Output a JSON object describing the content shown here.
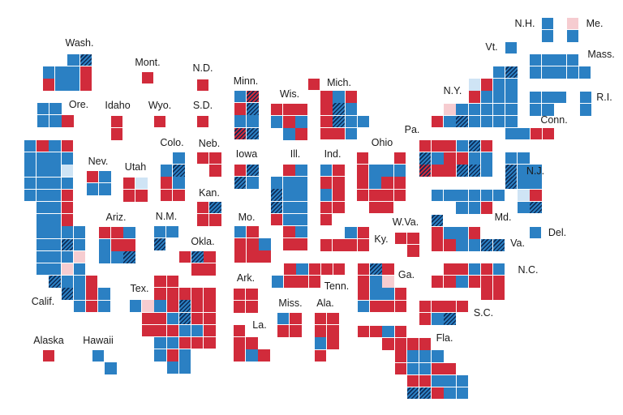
{
  "colors": {
    "D": "#2b80c3",
    "R": "#d12b3b",
    "d": "#cfe4f5",
    "r": "#f6ccd0",
    "h": "#2b80c3",
    "H": "#d12b3b",
    "hatch": "#0d2a55"
  },
  "legend_codes": {
    "D": "democratic",
    "R": "republican",
    "d": "democratic-lean",
    "r": "republican-lean",
    "h": "democratic-hatched",
    "H": "republican-hatched"
  },
  "states": [
    {
      "key": "wa",
      "label": "Wash.",
      "rows": [
        "..Dh",
        "DDDR",
        "RDDR"
      ]
    },
    {
      "key": "mt",
      "label": "Mont.",
      "rows": [
        "R"
      ]
    },
    {
      "key": "nd",
      "label": "N.D.",
      "rows": [
        "R"
      ]
    },
    {
      "key": "or",
      "label": "Ore.",
      "rows": [
        "DD.",
        "DDR"
      ]
    },
    {
      "key": "id",
      "label": "Idaho",
      "rows": [
        "R",
        "R"
      ]
    },
    {
      "key": "wy",
      "label": "Wyo.",
      "rows": [
        "R"
      ]
    },
    {
      "key": "sd",
      "label": "S.D.",
      "rows": [
        "R"
      ]
    },
    {
      "key": "ca",
      "label": "Calif.",
      "rows": [
        "DRDR",
        "DDDD",
        "DDDd",
        "DDDD",
        "DDDR",
        ".DDR",
        ".DDR",
        ".DDDD",
        ".DDhD",
        ".DDDr",
        ".DDrD",
        "..hDDR",
        "...hDRD",
        "....DRD"
      ]
    },
    {
      "key": "nv",
      "label": "Nev.",
      "rows": [
        "RD",
        "DD"
      ]
    },
    {
      "key": "ut",
      "label": "Utah",
      "rows": [
        "Rd",
        "RR"
      ]
    },
    {
      "key": "co",
      "label": "Colo.",
      "rows": [
        ".D",
        "Dh",
        "RD",
        "RR"
      ]
    },
    {
      "key": "ne",
      "label": "Neb.",
      "rows": [
        "RR",
        ".R"
      ]
    },
    {
      "key": "ks",
      "label": "Kan.",
      "rows": [
        "Rh",
        "RR"
      ]
    },
    {
      "key": "nm",
      "label": "N.M.",
      "rows": [
        "DD",
        "h."
      ]
    },
    {
      "key": "ok",
      "label": "Okla.",
      "rows": [
        "RhR",
        ".RR"
      ]
    },
    {
      "key": "az",
      "label": "Ariz.",
      "rows": [
        "RRD",
        "DRR",
        "DDh"
      ]
    },
    {
      "key": "ak",
      "label": "Alaska",
      "rows": [
        "R"
      ]
    },
    {
      "key": "hi",
      "label": "Hawaii",
      "rows": [
        "D.",
        ".D"
      ]
    },
    {
      "key": "tx",
      "label": "Tex.",
      "rows": [
        "..RR",
        "..RRRRR",
        "DrDRhRR",
        ".RRDhRR",
        ".RRRDDR",
        "..DDRRR",
        "..DRD",
        "...DD"
      ]
    },
    {
      "key": "mn",
      "label": "Minn.",
      "rows": [
        "DH",
        "Rh",
        "DD",
        "Hh"
      ]
    },
    {
      "key": "wi",
      "label": "Wis.",
      "rows": [
        "RRR",
        "DRD",
        ".DR"
      ]
    },
    {
      "key": "mi",
      "label": "Mich.",
      "rows": [
        "R",
        ".RDR",
        ".RhD",
        ".RhDD",
        ".RRD"
      ]
    },
    {
      "key": "ia",
      "label": "Iowa",
      "rows": [
        "Rh",
        "hD"
      ]
    },
    {
      "key": "il",
      "label": "Ill.",
      "rows": [
        ".RD",
        "DDD",
        "hDD",
        "hDD",
        "RDD",
        ".RD",
        ".RR"
      ]
    },
    {
      "key": "in",
      "label": "Ind.",
      "rows": [
        "DR",
        "RR",
        "DR",
        "RR",
        "R."
      ]
    },
    {
      "key": "oh",
      "label": "Ohio",
      "rows": [
        "R..R",
        "RDDD",
        "RDRR",
        "RRRR",
        ".RR."
      ]
    },
    {
      "key": "ky",
      "label": "Ky.",
      "rows": [
        "..DR",
        "RRRR"
      ]
    },
    {
      "key": "mo",
      "label": "Mo.",
      "rows": [
        "DR.",
        "RRD",
        "RRR"
      ]
    },
    {
      "key": "wv",
      "label": "W.Va.",
      "rows": [
        "RR",
        ".R"
      ]
    },
    {
      "key": "tn",
      "label": "Tenn.",
      "rows": [
        ".RDRRR",
        "DRRR"
      ]
    },
    {
      "key": "ar",
      "label": "Ark.",
      "rows": [
        "RR",
        "RR"
      ]
    },
    {
      "key": "ms",
      "label": "Miss.",
      "rows": [
        "DR",
        "RR"
      ]
    },
    {
      "key": "al",
      "label": "Ala.",
      "rows": [
        "RR",
        "RR",
        "DR",
        "R."
      ]
    },
    {
      "key": "la",
      "label": "La.",
      "rows": [
        "R",
        "RR",
        "RDR"
      ]
    },
    {
      "key": "ga",
      "label": "Ga.",
      "rows": [
        "RhR",
        "RDr",
        "RDDR",
        "DRRR"
      ]
    },
    {
      "key": "sc",
      "label": "S.C.",
      "rows": [
        "RRRR",
        "RDh"
      ]
    },
    {
      "key": "nc",
      "label": "N.C.",
      "rows": [
        ".RRDRD",
        "RRDRRR",
        "....RR"
      ]
    },
    {
      "key": "va",
      "label": "Va.",
      "rows": [
        "h",
        "RDDR",
        "RRDDhh"
      ]
    },
    {
      "key": "de",
      "label": "Del.",
      "rows": [
        "D"
      ]
    },
    {
      "key": "fl",
      "label": "Fla.",
      "rows": [
        "RRDR",
        "..RRRR",
        "...RDDD",
        "...RDDRR",
        "....RRDDD",
        "....hhRDD"
      ]
    },
    {
      "key": "pa",
      "label": "Pa.",
      "rows": [
        "RRRDhR",
        "hDRRDD",
        "HRRhhD"
      ]
    },
    {
      "key": "ny",
      "label": "N.Y.",
      "rows": [
        ".....Dh",
        "...dRDD",
        "...RDDD",
        ".rDDDDD",
        "RDhDDDD",
        "......DDRR"
      ]
    },
    {
      "key": "vt",
      "label": "Vt.",
      "rows": [
        "D"
      ]
    },
    {
      "key": "nh",
      "label": "N.H.",
      "rows": [
        "D",
        "D"
      ]
    },
    {
      "key": "me",
      "label": "Me.",
      "rows": [
        "r",
        "D"
      ]
    },
    {
      "key": "ma",
      "label": "Mass.",
      "rows": [
        "DDDD",
        "DDDDD"
      ]
    },
    {
      "key": "ct",
      "label": "Conn.",
      "rows": [
        "DDD",
        "DD"
      ]
    },
    {
      "key": "ri",
      "label": "R.I.",
      "rows": [
        "D",
        "D"
      ]
    },
    {
      "key": "nj",
      "label": "N.J.",
      "rows": [
        "DD",
        "hDD",
        "hDD",
        ".dR",
        ".Dh"
      ]
    },
    {
      "key": "md",
      "label": "Md.",
      "rows": [
        "DDDDDD",
        "..DDR"
      ]
    }
  ]
}
